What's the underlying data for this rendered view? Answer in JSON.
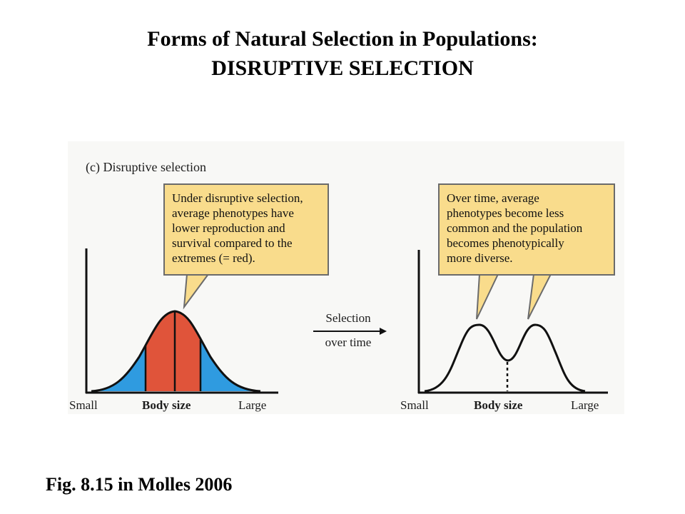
{
  "title": {
    "line1": "Forms of Natural Selection in Populations:",
    "line2": "DISRUPTIVE SELECTION"
  },
  "figure": {
    "panel_label": "(c) Disruptive selection",
    "callout_left": [
      "Under disruptive selection,",
      "average phenotypes have",
      "lower reproduction and",
      "survival compared to the",
      "extremes (= red)."
    ],
    "callout_right": [
      "Over time, average",
      "phenotypes become less",
      "common and the population",
      "becomes phenotypically",
      "more diverse."
    ],
    "arrow_label": [
      "Selection",
      "over time"
    ],
    "left_axis": {
      "small": "Small",
      "body_size": "Body size",
      "large": "Large"
    },
    "right_axis": {
      "small": "Small",
      "body_size": "Body size",
      "large": "Large"
    },
    "colors": {
      "extremes": "#2f9be0",
      "average": "#e0543a",
      "callout": "#f9dc8c"
    }
  },
  "caption": "Fig. 8.15 in Molles 2006"
}
